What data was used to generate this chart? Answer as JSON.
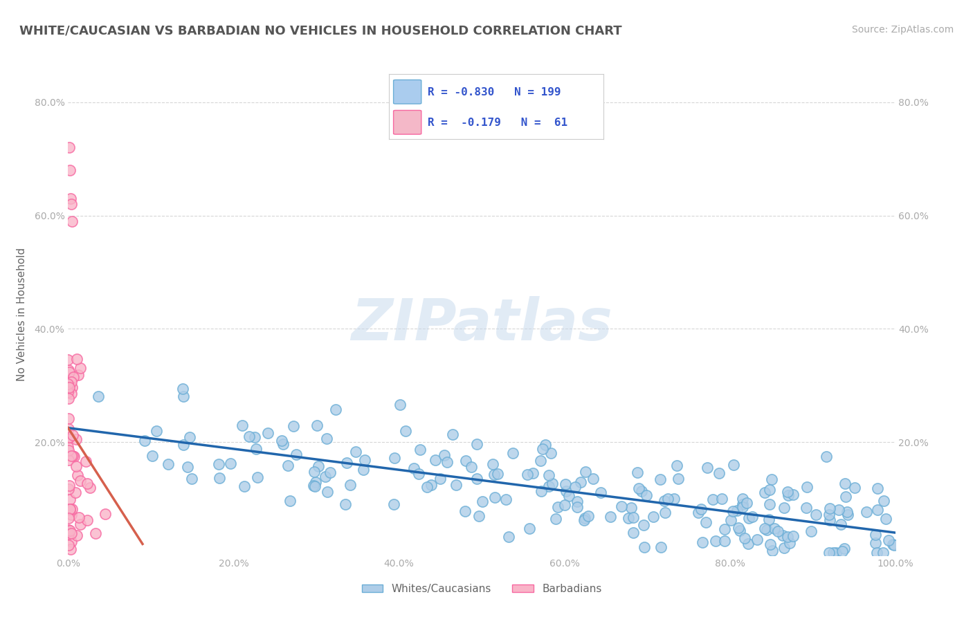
{
  "title": "WHITE/CAUCASIAN VS BARBADIAN NO VEHICLES IN HOUSEHOLD CORRELATION CHART",
  "source": "Source: ZipAtlas.com",
  "ylabel": "No Vehicles in Household",
  "xlim": [
    0,
    1.0
  ],
  "ylim": [
    0,
    0.85
  ],
  "x_tick_labels": [
    "0.0%",
    "20.0%",
    "40.0%",
    "60.0%",
    "80.0%",
    "100.0%"
  ],
  "x_tick_positions": [
    0,
    0.2,
    0.4,
    0.6,
    0.8,
    1.0
  ],
  "y_tick_labels": [
    "20.0%",
    "40.0%",
    "60.0%",
    "80.0%"
  ],
  "y_tick_positions": [
    0.2,
    0.4,
    0.6,
    0.8
  ],
  "blue_dot_face": "#aecde8",
  "blue_dot_edge": "#6baed6",
  "pink_dot_face": "#f9b4c8",
  "pink_dot_edge": "#f768a1",
  "trend_blue": "#2166ac",
  "trend_pink": "#d6604d",
  "R_blue": -0.83,
  "N_blue": 199,
  "R_pink": -0.179,
  "N_pink": 61,
  "watermark_text": "ZIPatlas",
  "legend_labels": [
    "Whites/Caucasians",
    "Barbadians"
  ],
  "background_color": "#ffffff",
  "grid_color": "#cccccc",
  "title_color": "#555555",
  "axis_label_color": "#666666",
  "tick_color": "#aaaaaa",
  "legend_R_color": "#3355cc",
  "title_fontsize": 13,
  "source_fontsize": 10,
  "legend_box_color": "#aaccee",
  "legend_box_pink": "#f4b8c8"
}
